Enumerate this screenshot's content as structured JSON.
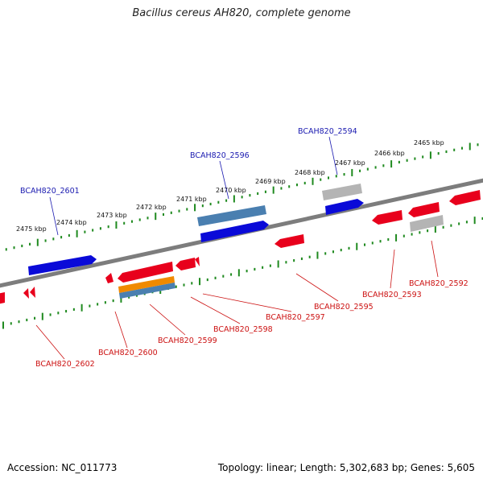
{
  "title": "Bacillus cereus AH820, complete genome",
  "footer": {
    "accession": "Accession: NC_011773",
    "summary": "Topology: linear; Length: 5,302,683 bp; Genes: 5,605"
  },
  "scale_ticks": [
    "2465 kbp",
    "2466 kbp",
    "2467 kbp",
    "2468 kbp",
    "2469 kbp",
    "2470 kbp",
    "2471 kbp",
    "2472 kbp",
    "2473 kbp",
    "2474 kbp",
    "2475 kbp"
  ],
  "top_labels": [
    "BCAH820_2594",
    "BCAH820_2596",
    "BCAH820_2601"
  ],
  "bottom_labels": [
    "BCAH820_2592",
    "BCAH820_2593",
    "BCAH820_2595",
    "BCAH820_2597",
    "BCAH820_2598",
    "BCAH820_2599",
    "BCAH820_2600",
    "BCAH820_2602"
  ],
  "colors": {
    "blue": "#0a0ad8",
    "blue_label": "#1a1ab0",
    "red": "#e8001c",
    "red_label": "#cc1111",
    "gray": "#b4b4b4",
    "steel": "#4a7fb0",
    "orange": "#f08a00",
    "dots": "#1f8a1f",
    "axis": "#808080"
  }
}
